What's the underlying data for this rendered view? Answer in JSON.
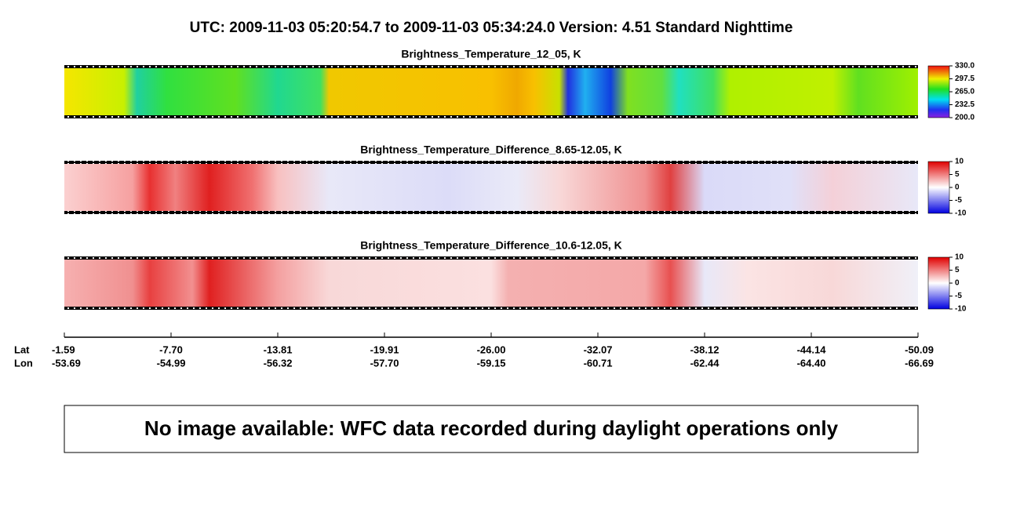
{
  "title": "UTC:  2009-11-03   05:20:54.7  to  2009-11-03   05:34:24.0    Version: 4.51  Standard Nighttime",
  "chart_data": [
    {
      "type": "heatmap",
      "title": "Brightness_Temperature_12_05, K",
      "clim": [
        200,
        330
      ],
      "cticks": [
        {
          "value": 330,
          "label": "330.0"
        },
        {
          "value": 297.5,
          "label": "297.5"
        },
        {
          "value": 265,
          "label": "265.0"
        },
        {
          "value": 232.5,
          "label": "232.5"
        },
        {
          "value": 200,
          "label": "200.0"
        }
      ]
    },
    {
      "type": "heatmap",
      "title": "Brightness_Temperature_Difference_8.65-12.05, K",
      "clim": [
        -10,
        10
      ],
      "cticks": [
        10,
        5,
        0,
        -5,
        -10
      ]
    },
    {
      "type": "heatmap",
      "title": "Brightness_Temperature_Difference_10.6-12.05, K",
      "clim": [
        -10,
        10
      ],
      "cticks": [
        10,
        5,
        0,
        -5,
        -10
      ]
    }
  ],
  "axis": {
    "lat_label": "Lat",
    "lon_label": "Lon",
    "ticks": [
      {
        "lat": "-1.59",
        "lon": "-53.69"
      },
      {
        "lat": "-7.70",
        "lon": "-54.99"
      },
      {
        "lat": "-13.81",
        "lon": "-56.32"
      },
      {
        "lat": "-19.91",
        "lon": "-57.70"
      },
      {
        "lat": "-26.00",
        "lon": "-59.15"
      },
      {
        "lat": "-32.07",
        "lon": "-60.71"
      },
      {
        "lat": "-38.12",
        "lon": "-62.44"
      },
      {
        "lat": "-44.14",
        "lon": "-64.40"
      },
      {
        "lat": "-50.09",
        "lon": "-66.69"
      }
    ]
  },
  "notice": "No image available: WFC data recorded during daylight operations only"
}
